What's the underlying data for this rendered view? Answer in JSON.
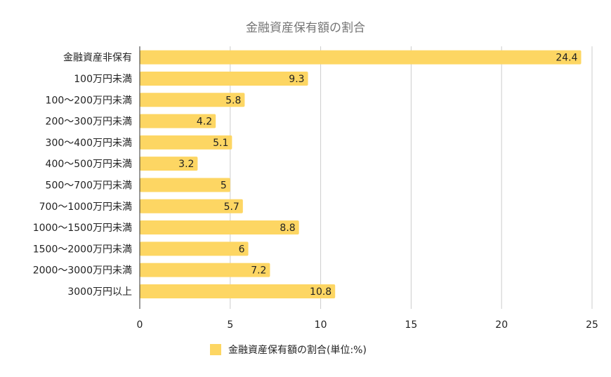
{
  "chart_data": {
    "type": "bar",
    "orientation": "horizontal",
    "title": "金融資産保有額の割合",
    "categories": [
      "金融資産非保有",
      "100万円未満",
      "100～200万円未満",
      "200～300万円未満",
      "300～400万円未満",
      "400～500万円未満",
      "500～700万円未満",
      "700～1000万円未満",
      "1000～1500万円未満",
      "1500～2000万円未満",
      "2000～3000万円未満",
      "3000万円以上"
    ],
    "series": [
      {
        "name": "金融資産保有額の割合(単位:%)",
        "values": [
          24.4,
          9.3,
          5.8,
          4.2,
          5.1,
          3.2,
          5,
          5.7,
          8.8,
          6,
          7.2,
          10.8
        ],
        "data_labels": [
          "24.4",
          "9.3",
          "5.8",
          "4.2",
          "5.1",
          "3.2",
          "5",
          "5.7",
          "8.8",
          "6",
          "7.2",
          "10.8"
        ]
      }
    ],
    "xlim": [
      0,
      25
    ],
    "x_ticks": [
      "0",
      "5",
      "10",
      "15",
      "20",
      "25"
    ],
    "x_tick_values": [
      0,
      5,
      10,
      15,
      20,
      25
    ],
    "xlabel": "",
    "ylabel": "",
    "grid": "vertical",
    "legend_position": "bottom",
    "bar_color": "#fdd663",
    "grid_color": "#cccccc",
    "axis_color": "#333333"
  }
}
